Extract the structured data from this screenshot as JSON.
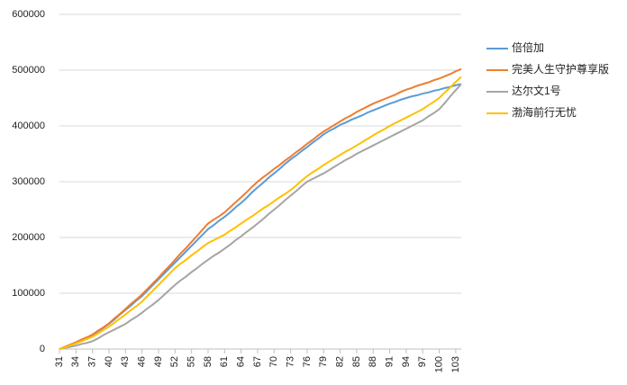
{
  "chart_data": {
    "type": "line",
    "x": [
      31,
      32,
      33,
      34,
      35,
      36,
      37,
      38,
      39,
      40,
      41,
      42,
      43,
      44,
      45,
      46,
      47,
      48,
      49,
      50,
      51,
      52,
      53,
      54,
      55,
      56,
      57,
      58,
      59,
      60,
      61,
      62,
      63,
      64,
      65,
      66,
      67,
      68,
      69,
      70,
      71,
      72,
      73,
      74,
      75,
      76,
      77,
      78,
      79,
      80,
      81,
      82,
      83,
      84,
      85,
      86,
      87,
      88,
      89,
      90,
      91,
      92,
      93,
      94,
      95,
      96,
      97,
      98,
      99,
      100,
      101,
      102,
      103,
      104
    ],
    "xlim": [
      31,
      104
    ],
    "xticks": [
      31,
      34,
      37,
      40,
      43,
      46,
      49,
      52,
      55,
      58,
      61,
      64,
      67,
      70,
      73,
      76,
      79,
      82,
      85,
      88,
      91,
      94,
      97,
      100,
      103
    ],
    "ylim": [
      0,
      600000
    ],
    "yticks": [
      0,
      100000,
      200000,
      300000,
      400000,
      500000,
      600000
    ],
    "grid": true,
    "legend": "right",
    "series": [
      {
        "name": "倍倍加",
        "color": "#5b9bd5",
        "values": [
          0,
          4000,
          8000,
          12000,
          16000,
          21000,
          25000,
          32000,
          38000,
          45000,
          53000,
          62000,
          70000,
          78000,
          87000,
          95000,
          105000,
          115000,
          125000,
          135000,
          145000,
          155000,
          165000,
          175000,
          185000,
          195000,
          205000,
          215000,
          222000,
          230000,
          237000,
          245000,
          254000,
          262000,
          271000,
          281000,
          290000,
          298000,
          307000,
          315000,
          323000,
          332000,
          340000,
          347000,
          355000,
          362000,
          370000,
          377000,
          385000,
          391000,
          396000,
          402000,
          406000,
          411000,
          415000,
          419000,
          424000,
          428000,
          432000,
          436000,
          440000,
          443000,
          447000,
          450000,
          453000,
          455000,
          458000,
          460000,
          463000,
          465000,
          468000,
          470000,
          473000,
          475000
        ]
      },
      {
        "name": "完美人生守护尊享版",
        "color": "#ed7d31",
        "values": [
          0,
          4000,
          8000,
          12000,
          17000,
          21000,
          26000,
          33000,
          39000,
          46000,
          55000,
          63000,
          72000,
          81000,
          89000,
          98000,
          108000,
          118000,
          128000,
          139000,
          149000,
          160000,
          171000,
          181000,
          192000,
          203000,
          214000,
          225000,
          232000,
          238000,
          245000,
          254000,
          263000,
          272000,
          281000,
          291000,
          300000,
          308000,
          315000,
          323000,
          330000,
          338000,
          345000,
          353000,
          360000,
          368000,
          375000,
          383000,
          390000,
          396000,
          402000,
          408000,
          414000,
          419000,
          425000,
          430000,
          435000,
          440000,
          444000,
          448000,
          452000,
          456000,
          461000,
          465000,
          468000,
          472000,
          475000,
          478000,
          482000,
          485000,
          489000,
          493000,
          498000,
          502000
        ]
      },
      {
        "name": "达尔文1号",
        "color": "#a5a5a5",
        "values": [
          0,
          2000,
          4000,
          6000,
          9000,
          11000,
          14000,
          19000,
          25000,
          30000,
          35000,
          40000,
          45000,
          52000,
          58000,
          65000,
          73000,
          80000,
          88000,
          97000,
          106000,
          115000,
          123000,
          130000,
          138000,
          145000,
          153000,
          160000,
          167000,
          173000,
          180000,
          187000,
          195000,
          202000,
          210000,
          217000,
          225000,
          233000,
          242000,
          250000,
          258000,
          267000,
          275000,
          283000,
          292000,
          300000,
          305000,
          310000,
          315000,
          321000,
          327000,
          333000,
          339000,
          344000,
          350000,
          355000,
          360000,
          365000,
          370000,
          375000,
          380000,
          385000,
          390000,
          395000,
          400000,
          405000,
          410000,
          417000,
          423000,
          430000,
          441000,
          453000,
          464000,
          475000
        ]
      },
      {
        "name": "渤海前行无忧",
        "color": "#ffc000",
        "values": [
          0,
          3000,
          7000,
          10000,
          14000,
          18000,
          22000,
          28000,
          34000,
          40000,
          47000,
          55000,
          62000,
          70000,
          77000,
          85000,
          95000,
          105000,
          115000,
          125000,
          135000,
          145000,
          153000,
          160000,
          168000,
          175000,
          183000,
          190000,
          195000,
          200000,
          205000,
          212000,
          218000,
          225000,
          232000,
          238000,
          245000,
          252000,
          258000,
          265000,
          272000,
          278000,
          285000,
          293000,
          302000,
          310000,
          317000,
          323000,
          330000,
          336000,
          342000,
          348000,
          354000,
          359000,
          365000,
          371000,
          377000,
          383000,
          389000,
          394000,
          400000,
          405000,
          410000,
          415000,
          420000,
          425000,
          430000,
          437000,
          443000,
          450000,
          460000,
          469000,
          479000,
          488000
        ]
      }
    ]
  }
}
